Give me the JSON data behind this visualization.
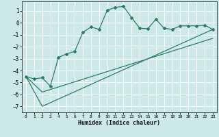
{
  "xlabel": "Humidex (Indice chaleur)",
  "bg_color": "#cce8e8",
  "line_color": "#2d7a6a",
  "grid_color": "#ffffff",
  "xlim": [
    -0.5,
    23.5
  ],
  "ylim": [
    -7.5,
    1.8
  ],
  "yticks": [
    1,
    0,
    -1,
    -2,
    -3,
    -4,
    -5,
    -6,
    -7
  ],
  "xticks": [
    0,
    1,
    2,
    3,
    4,
    5,
    6,
    7,
    8,
    9,
    10,
    11,
    12,
    13,
    14,
    15,
    16,
    17,
    18,
    19,
    20,
    21,
    22,
    23
  ],
  "curve1_x": [
    0,
    1,
    2,
    3,
    4,
    5,
    6,
    7,
    8,
    9,
    10,
    11,
    12,
    13,
    14,
    15,
    16,
    17,
    18,
    19,
    20,
    21,
    22,
    23
  ],
  "curve1_y": [
    -4.5,
    -4.7,
    -4.6,
    -5.3,
    -2.9,
    -2.6,
    -2.4,
    -0.8,
    -0.35,
    -0.55,
    1.05,
    1.3,
    1.38,
    0.45,
    -0.45,
    -0.5,
    0.3,
    -0.45,
    -0.55,
    -0.25,
    -0.25,
    -0.25,
    -0.2,
    -0.55
  ],
  "curve2_x": [
    0,
    2,
    23
  ],
  "curve2_y": [
    -4.5,
    -7.0,
    -0.55
  ],
  "curve3_x": [
    0,
    2,
    23
  ],
  "curve3_y": [
    -4.5,
    -5.8,
    -1.3
  ]
}
